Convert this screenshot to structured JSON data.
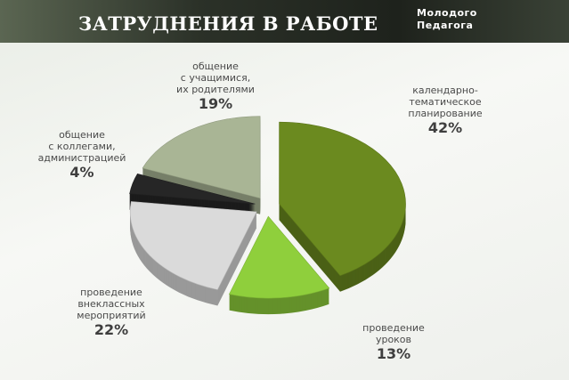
{
  "chart_data": {
    "type": "pie",
    "title": "ЗАТРУДНЕНИЯ В РАБОТЕ",
    "logo": [
      "Молодого",
      "Педагога"
    ],
    "categories": [
      "календарно-\nтематическое\nпланирование",
      "проведение\nуроков",
      "проведение\nвнеклассных\nмероприятий",
      "общение\nс коллегами,\nадминистрацией",
      "общение\nс учащимися,\nих родителями"
    ],
    "values": [
      42,
      13,
      22,
      4,
      19
    ],
    "value_labels": [
      "42%",
      "13%",
      "22%",
      "4%",
      "19%"
    ],
    "colors": [
      "#6b8a1f",
      "#8fcf3c",
      "#dadada",
      "#262626",
      "#a9b595"
    ]
  }
}
